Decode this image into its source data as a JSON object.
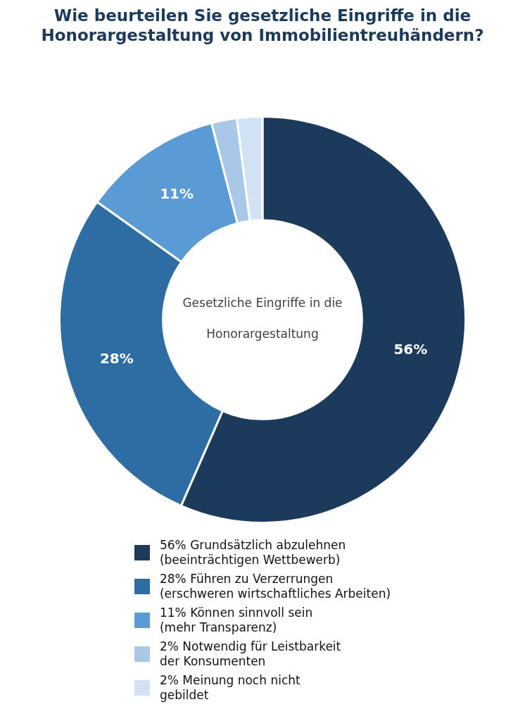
{
  "chart_data": {
    "type": "donut",
    "title": "Wie beurteilen Sie gesetzliche Eingriffe in die\nHonorargestaltung von Immobilientreuhändern?",
    "categories": [
      "56%  Grundsätzlich abzulehnen\n(beeinträchtigen Wettbewerb)",
      "28%  Führen zu Verzerrungen\n(erschweren wirtschaftliches Arbeiten)",
      "11%  Können sinnvoll sein\n(mehr Transparenz)",
      "2%  Notwendig für Leistbarkeit\nder Konsumenten",
      "2%  Meinung noch nicht\ngebildet"
    ],
    "values": [
      56,
      28,
      11,
      2,
      2
    ],
    "colors": [
      "#1b3a5c",
      "#2e6da4",
      "#5b9bd5",
      "#a9c8e8",
      "#d0e2f4"
    ],
    "value_labels": [
      "56%",
      "28%",
      "11%",
      null,
      null
    ],
    "annotations": [
      "Gesetzliche Eingriffe in die\n\nHonorargestaltung"
    ],
    "legend": "bottom"
  }
}
